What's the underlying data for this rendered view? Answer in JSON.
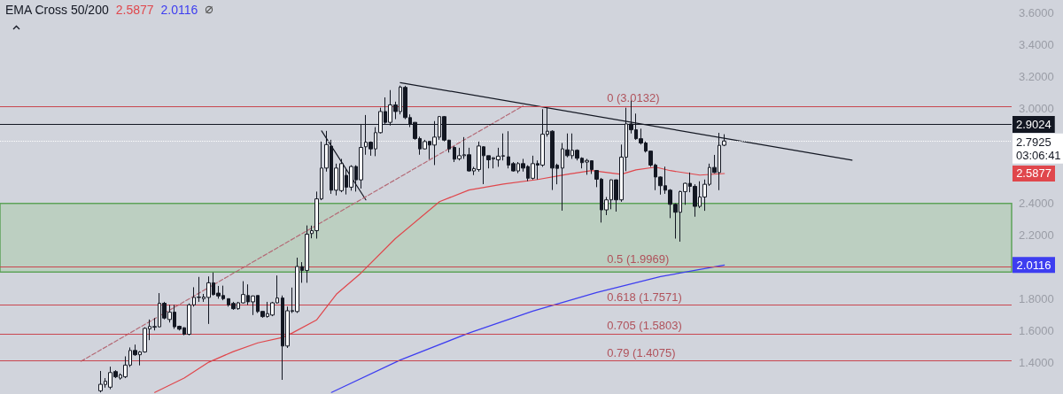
{
  "chart_data": {
    "type": "candlestick",
    "title": "EMA Cross 50/200",
    "tick_labels": "y",
    "grid": false,
    "categories": [
      null,
      null,
      null,
      null,
      null,
      null,
      null,
      null,
      null,
      null,
      null,
      null,
      null,
      null,
      null,
      null,
      null,
      null,
      null,
      null,
      null,
      null,
      null,
      null,
      null,
      null,
      null,
      null,
      null,
      null,
      null,
      null,
      null,
      null,
      null,
      null,
      null,
      null,
      null,
      null,
      null,
      null,
      null,
      null,
      null,
      null,
      null,
      null,
      null,
      null,
      null,
      null,
      null,
      null,
      null,
      null,
      null,
      null,
      null,
      null,
      null,
      null,
      null,
      null,
      null,
      null,
      null,
      null,
      null,
      null,
      null,
      null,
      null,
      null,
      null,
      null,
      null,
      null,
      null,
      null,
      null,
      null,
      null,
      null,
      null,
      null,
      null,
      null,
      null,
      null,
      null,
      null,
      null,
      null,
      null,
      null,
      null,
      null,
      null,
      null,
      null,
      null,
      null,
      null,
      null,
      null,
      null,
      null,
      null,
      null,
      null,
      null,
      null,
      null,
      null,
      null,
      null,
      null,
      null,
      null,
      null,
      null,
      null,
      null,
      null,
      null,
      null,
      null,
      null,
      null,
      null,
      null,
      null,
      null,
      null,
      null,
      null,
      null,
      null,
      null,
      null,
      null,
      null,
      null,
      null,
      null,
      null,
      null,
      null,
      null,
      null,
      null,
      null,
      null,
      null,
      null,
      null,
      null,
      null,
      null,
      null,
      null,
      null,
      null,
      null,
      null,
      null,
      null,
      null,
      null,
      null,
      null,
      null,
      null,
      null,
      null,
      null,
      null,
      null,
      null,
      null,
      null,
      null,
      null,
      null,
      null,
      null,
      null,
      null,
      null,
      null,
      null,
      null,
      null,
      null,
      null,
      null,
      null,
      null,
      null,
      null,
      null,
      null,
      null,
      null,
      null
    ],
    "ylim": [
      1.2,
      3.68
    ],
    "yticks": [
      {
        "value": 1.4,
        "label": "1.4000"
      },
      {
        "value": 1.6,
        "label": "1.6000"
      },
      {
        "value": 1.8,
        "label": "1.8000"
      },
      {
        "value": 2.2,
        "label": "2.2000"
      },
      {
        "value": 2.4,
        "label": "2.4000"
      },
      {
        "value": 3.0,
        "label": "3.0000"
      },
      {
        "value": 3.2,
        "label": "3.2000"
      },
      {
        "value": 3.4,
        "label": "3.4000"
      },
      {
        "value": 3.6,
        "label": "3.6000"
      }
    ],
    "series": [
      {
        "color": "#131722",
        "ohlc": [
          null,
          null,
          null,
          null,
          null,
          null,
          null,
          null,
          null,
          null,
          null,
          null,
          null,
          null,
          null,
          null,
          null,
          null,
          null,
          null,
          [
            1.22,
            1.345,
            1.21,
            1.261
          ],
          [
            1.26,
            1.3,
            1.24,
            1.28
          ],
          [
            1.243,
            1.372,
            1.23,
            1.335
          ],
          [
            1.341,
            1.35,
            1.3,
            1.308
          ],
          [
            1.3,
            1.33,
            1.29,
            1.32
          ],
          [
            1.308,
            1.437,
            1.3,
            1.382
          ],
          [
            1.382,
            1.493,
            1.37,
            1.474
          ],
          [
            1.474,
            1.511,
            1.44,
            1.447
          ],
          [
            1.447,
            1.47,
            1.38,
            1.465
          ],
          [
            1.465,
            1.62,
            1.46,
            1.613
          ],
          [
            1.61,
            1.669,
            1.539,
            1.625
          ],
          [
            1.62,
            1.678,
            1.6,
            1.625
          ],
          [
            1.623,
            1.835,
            1.62,
            1.771
          ],
          [
            1.771,
            1.78,
            1.67,
            1.678
          ],
          [
            1.669,
            1.761,
            1.65,
            1.715
          ],
          [
            1.715,
            1.761,
            1.61,
            1.623
          ],
          [
            1.626,
            1.63,
            1.6,
            1.608
          ],
          [
            1.617,
            1.62,
            1.57,
            1.576
          ],
          [
            1.576,
            1.77,
            1.57,
            1.761
          ],
          [
            1.761,
            1.872,
            1.75,
            1.808
          ],
          [
            1.81,
            1.937,
            1.78,
            1.808
          ],
          [
            1.8,
            1.83,
            1.78,
            1.81
          ],
          [
            1.808,
            1.94,
            1.641,
            1.9
          ],
          [
            1.9,
            1.965,
            1.82,
            1.826
          ],
          [
            1.835,
            1.88,
            1.8,
            1.817
          ],
          [
            1.82,
            1.882,
            1.79,
            1.8
          ],
          [
            1.8,
            1.8,
            1.75,
            1.761
          ],
          [
            1.77,
            1.78,
            1.73,
            1.737
          ],
          [
            1.737,
            1.78,
            1.73,
            1.774
          ],
          [
            1.774,
            1.91,
            1.77,
            1.826
          ],
          [
            1.82,
            1.89,
            1.76,
            1.78
          ],
          [
            1.78,
            1.82,
            1.697,
            1.817
          ],
          [
            1.82,
            1.82,
            1.71,
            1.719
          ],
          [
            1.72,
            1.72,
            1.68,
            1.687
          ],
          [
            1.688,
            1.78,
            1.68,
            1.706
          ],
          [
            1.697,
            1.78,
            1.69,
            1.774
          ],
          [
            1.774,
            1.946,
            1.77,
            1.804
          ],
          [
            1.804,
            1.82,
            1.289,
            1.502
          ],
          [
            1.502,
            1.75,
            1.49,
            1.724
          ],
          [
            1.72,
            1.87,
            1.71,
            1.725
          ],
          [
            1.719,
            2.058,
            1.71,
            2.002
          ],
          [
            2.002,
            2.03,
            1.9,
            1.978
          ],
          [
            1.978,
            2.261,
            1.9,
            2.206
          ],
          [
            2.21,
            2.26,
            2.18,
            2.228
          ],
          [
            2.228,
            2.474,
            2.178,
            2.428
          ],
          [
            2.428,
            2.789,
            2.42,
            2.622
          ],
          [
            2.622,
            2.856,
            2.6,
            2.77
          ],
          [
            2.76,
            2.8,
            2.46,
            2.483
          ],
          [
            2.483,
            2.65,
            2.45,
            2.622
          ],
          [
            2.48,
            2.68,
            2.47,
            2.65
          ],
          [
            2.576,
            2.62,
            2.456,
            2.502
          ],
          [
            2.502,
            2.64,
            2.48,
            2.632
          ],
          [
            2.632,
            2.64,
            2.474,
            2.548
          ],
          [
            2.548,
            2.9,
            2.493,
            2.752
          ],
          [
            2.756,
            2.956,
            2.706,
            2.785
          ],
          [
            2.785,
            2.79,
            2.7,
            2.743
          ],
          [
            2.743,
            2.88,
            2.697,
            2.845
          ],
          [
            2.845,
            3.002,
            2.84,
            2.978
          ],
          [
            2.978,
            3.067,
            2.9,
            2.91
          ],
          [
            2.91,
            3.113,
            2.89,
            3.02
          ],
          [
            3.02,
            3.04,
            2.93,
            2.978
          ],
          [
            2.978,
            3.141,
            2.96,
            3.132
          ],
          [
            3.13,
            3.14,
            2.93,
            2.94
          ],
          [
            2.94,
            2.96,
            2.88,
            2.9
          ],
          [
            2.91,
            2.91,
            2.8,
            2.808
          ],
          [
            2.808,
            2.82,
            2.706,
            2.743
          ],
          [
            2.743,
            2.8,
            2.74,
            2.789
          ],
          [
            2.79,
            2.79,
            2.678,
            2.767
          ],
          [
            2.767,
            2.918,
            2.641,
            2.817
          ],
          [
            2.817,
            2.95,
            2.8,
            2.946
          ],
          [
            2.946,
            2.95,
            2.79,
            2.798
          ],
          [
            2.798,
            2.8,
            2.72,
            2.743
          ],
          [
            2.752,
            2.76,
            2.66,
            2.678
          ],
          [
            2.681,
            2.75,
            2.67,
            2.7
          ],
          [
            2.7,
            2.817,
            2.68,
            2.706
          ],
          [
            2.706,
            2.75,
            2.6,
            2.604
          ],
          [
            2.604,
            2.63,
            2.578,
            2.619
          ],
          [
            2.613,
            2.789,
            2.6,
            2.761
          ],
          [
            2.756,
            2.76,
            2.521,
            2.7
          ],
          [
            2.7,
            2.7,
            2.62,
            2.674
          ],
          [
            2.68,
            2.69,
            2.62,
            2.687
          ],
          [
            2.674,
            2.75,
            2.63,
            2.697
          ],
          [
            2.697,
            2.84,
            2.67,
            2.7
          ],
          [
            2.693,
            2.854,
            2.62,
            2.641
          ],
          [
            2.65,
            2.66,
            2.6,
            2.604
          ],
          [
            2.604,
            2.66,
            2.59,
            2.65
          ],
          [
            2.65,
            2.68,
            2.6,
            2.622
          ],
          [
            2.632,
            2.64,
            2.54,
            2.558
          ],
          [
            2.558,
            2.7,
            2.55,
            2.65
          ],
          [
            2.65,
            2.67,
            2.55,
            2.641
          ],
          [
            2.641,
            2.993,
            2.63,
            2.835
          ],
          [
            2.835,
            3.002,
            2.82,
            2.854
          ],
          [
            2.854,
            2.86,
            2.484,
            2.622
          ],
          [
            2.64,
            2.65,
            2.52,
            2.62
          ],
          [
            2.622,
            2.78,
            2.354,
            2.743
          ],
          [
            2.737,
            2.84,
            2.69,
            2.7
          ],
          [
            2.7,
            2.84,
            2.68,
            2.734
          ],
          [
            2.734,
            2.74,
            2.67,
            2.684
          ],
          [
            2.684,
            2.69,
            2.62,
            2.656
          ],
          [
            2.66,
            2.68,
            2.58,
            2.67
          ],
          [
            2.668,
            2.67,
            2.585,
            2.613
          ],
          [
            2.607,
            2.61,
            2.502,
            2.552
          ],
          [
            2.552,
            2.56,
            2.279,
            2.359
          ],
          [
            2.359,
            2.44,
            2.326,
            2.422
          ],
          [
            2.422,
            2.55,
            2.363,
            2.548
          ],
          [
            2.548,
            2.55,
            2.348,
            2.422
          ],
          [
            2.422,
            2.77,
            2.41,
            2.691
          ],
          [
            2.691,
            3.002,
            2.603,
            2.9
          ],
          [
            2.9,
            3.048,
            2.84,
            2.863
          ],
          [
            2.863,
            2.965,
            2.8,
            2.807
          ],
          [
            2.807,
            2.87,
            2.77,
            2.78
          ],
          [
            2.78,
            2.79,
            2.72,
            2.729
          ],
          [
            2.729,
            2.73,
            2.63,
            2.641
          ],
          [
            2.641,
            2.65,
            2.483,
            2.566
          ],
          [
            2.566,
            2.57,
            2.455,
            2.511
          ],
          [
            2.511,
            2.631,
            2.46,
            2.483
          ],
          [
            2.483,
            2.49,
            2.307,
            2.394
          ],
          [
            2.394,
            2.4,
            2.178,
            2.344
          ],
          [
            2.344,
            2.48,
            2.159,
            2.474
          ],
          [
            2.474,
            2.53,
            2.391,
            2.526
          ],
          [
            2.526,
            2.594,
            2.47,
            2.507
          ],
          [
            2.507,
            2.52,
            2.316,
            2.381
          ],
          [
            2.381,
            2.539,
            2.37,
            2.44
          ],
          [
            2.44,
            2.55,
            2.353,
            2.52
          ],
          [
            2.52,
            2.65,
            2.51,
            2.626
          ],
          [
            2.626,
            2.705,
            2.59,
            2.594
          ],
          [
            2.594,
            2.844,
            2.483,
            2.765
          ],
          [
            2.766,
            2.835,
            2.76,
            2.7925
          ],
          null,
          null,
          null,
          null,
          null,
          null,
          null,
          null,
          null,
          null,
          null,
          null,
          null,
          null,
          null,
          null,
          null,
          null,
          null,
          null,
          null,
          null,
          null,
          null,
          null,
          null,
          null,
          null,
          null,
          null,
          null,
          null,
          null,
          null,
          null,
          null,
          null,
          null,
          null,
          null,
          null,
          null,
          null,
          null,
          null,
          null,
          null,
          null,
          null,
          null,
          null,
          null,
          null,
          null,
          null,
          null,
          null,
          null
        ]
      },
      {
        "type": "line",
        "name": "2.5877",
        "color": "#e0474c",
        "values": [
          null,
          null,
          null,
          null,
          null,
          null,
          null,
          null,
          null,
          null,
          null,
          null,
          null,
          null,
          null,
          null,
          null,
          null,
          null,
          null,
          null,
          null,
          null,
          null,
          null,
          null,
          null,
          null,
          null,
          null,
          null,
          1.21,
          null,
          null,
          null,
          null,
          null,
          1.3,
          null,
          null,
          null,
          null,
          1.4,
          null,
          null,
          null,
          null,
          1.467,
          null,
          null,
          null,
          null,
          1.522,
          null,
          null,
          null,
          null,
          1.556,
          null,
          1.584,
          null,
          null,
          null,
          null,
          1.667,
          null,
          null,
          null,
          1.828,
          null,
          null,
          null,
          null,
          1.961,
          null,
          null,
          null,
          null,
          null,
          null,
          2.178,
          null,
          null,
          null,
          null,
          null,
          null,
          null,
          null,
          2.411,
          null,
          null,
          null,
          null,
          null,
          2.484,
          null,
          null,
          null,
          null,
          null,
          null,
          2.522,
          null,
          null,
          null,
          null,
          null,
          null,
          2.55,
          null,
          null,
          null,
          null,
          null,
          2.583,
          null,
          null,
          null,
          null,
          2.606,
          null,
          null,
          null,
          null,
          null,
          2.583,
          null,
          null,
          2.611,
          null,
          null,
          null,
          2.628,
          null,
          null,
          2.606,
          null,
          null,
          null,
          null,
          null,
          2.578,
          null,
          null,
          null,
          null,
          2.5877,
          null,
          null,
          null,
          null,
          null,
          null,
          null,
          null,
          null,
          null,
          null,
          null,
          null,
          null,
          null,
          null,
          null,
          null,
          null,
          null,
          null,
          null,
          null,
          null,
          null,
          null,
          null,
          null,
          null,
          null,
          null,
          null,
          null,
          null,
          null,
          null,
          null,
          null,
          null,
          null,
          null,
          null,
          null,
          null,
          null,
          null,
          null,
          null,
          null,
          null,
          null,
          null,
          null,
          null,
          null,
          null,
          null,
          null
        ]
      },
      {
        "type": "line",
        "name": "2.0116",
        "color": "#3d3df0",
        "values": [
          null,
          null,
          null,
          null,
          null,
          null,
          null,
          null,
          null,
          null,
          null,
          null,
          null,
          null,
          null,
          null,
          null,
          null,
          null,
          null,
          null,
          null,
          null,
          null,
          null,
          null,
          null,
          null,
          null,
          null,
          null,
          null,
          null,
          null,
          null,
          null,
          null,
          null,
          null,
          null,
          null,
          null,
          null,
          null,
          null,
          null,
          null,
          null,
          null,
          null,
          null,
          null,
          null,
          null,
          null,
          null,
          null,
          null,
          null,
          null,
          null,
          null,
          null,
          null,
          null,
          null,
          null,
          1.21,
          null,
          null,
          null,
          null,
          null,
          null,
          null,
          null,
          null,
          null,
          null,
          null,
          null,
          1.414,
          null,
          null,
          null,
          null,
          null,
          null,
          null,
          null,
          null,
          null,
          null,
          null,
          null,
          1.584,
          null,
          null,
          null,
          null,
          null,
          null,
          null,
          null,
          null,
          null,
          null,
          null,
          1.722,
          null,
          null,
          null,
          null,
          null,
          null,
          null,
          null,
          null,
          null,
          null,
          null,
          1.839,
          null,
          null,
          null,
          null,
          null,
          null,
          null,
          null,
          null,
          null,
          null,
          null,
          1.939,
          null,
          null,
          null,
          null,
          null,
          null,
          null,
          null,
          null,
          null,
          null,
          null,
          2.0116,
          null,
          null,
          null,
          null,
          null,
          null,
          null,
          null,
          null,
          null,
          null,
          null,
          null,
          null,
          null,
          null,
          null,
          null,
          null,
          null,
          null,
          null,
          null,
          null,
          null,
          null,
          null,
          null,
          null,
          null,
          null,
          null,
          null,
          null,
          null,
          null,
          null,
          null,
          null,
          null,
          null,
          null,
          null,
          null,
          null,
          null,
          null,
          null,
          null,
          null,
          null,
          null,
          null,
          null,
          null,
          null,
          null,
          null
        ]
      },
      {
        "type": "line",
        "color": "#131722",
        "values": [
          null,
          null,
          null,
          null,
          null,
          null,
          null,
          null,
          null,
          null,
          null,
          null,
          null,
          null,
          null,
          null,
          null,
          null,
          null,
          null,
          null,
          null,
          null,
          null,
          null,
          null,
          null,
          null,
          null,
          null,
          null,
          null,
          null,
          null,
          null,
          null,
          null,
          null,
          null,
          null,
          null,
          null,
          null,
          null,
          null,
          null,
          null,
          null,
          null,
          null,
          null,
          null,
          null,
          null,
          null,
          null,
          null,
          null,
          null,
          null,
          null,
          null,
          null,
          null,
          null,
          null,
          null,
          null,
          null,
          null,
          null,
          null,
          null,
          null,
          null,
          null,
          null,
          null,
          null,
          null,
          null,
          3.16,
          null,
          null,
          null,
          null,
          null,
          null,
          null,
          null,
          null,
          null,
          null,
          null,
          null,
          null,
          null,
          null,
          null,
          null,
          null,
          null,
          null,
          null,
          null,
          null,
          null,
          null,
          null,
          null,
          null,
          null,
          null,
          null,
          null,
          null,
          null,
          null,
          null,
          null,
          null,
          null,
          null,
          null,
          null,
          null,
          null,
          null,
          null,
          null,
          null,
          null,
          null,
          null,
          null,
          null,
          null,
          null,
          null,
          null,
          null,
          null,
          null,
          null,
          null,
          null,
          null,
          null,
          null,
          null,
          null,
          null,
          null,
          null,
          null,
          null,
          null,
          null,
          null,
          null,
          null,
          null,
          null,
          null,
          null,
          null,
          null,
          null,
          null,
          null,
          null,
          null,
          null,
          2.672,
          null,
          null,
          null,
          null,
          null,
          null,
          null,
          null,
          null,
          null,
          null,
          null,
          null,
          null,
          null,
          null,
          null,
          null,
          null,
          null,
          null,
          null,
          null,
          null,
          null,
          null,
          null,
          null,
          null,
          null,
          null,
          null
        ]
      },
      {
        "type": "line",
        "color": "#131722",
        "values": [
          null,
          null,
          null,
          null,
          null,
          null,
          null,
          null,
          null,
          null,
          null,
          null,
          null,
          null,
          null,
          null,
          null,
          null,
          null,
          null,
          null,
          null,
          null,
          null,
          null,
          null,
          null,
          null,
          null,
          null,
          null,
          null,
          null,
          null,
          null,
          null,
          null,
          null,
          null,
          null,
          null,
          null,
          null,
          null,
          null,
          null,
          null,
          null,
          null,
          null,
          null,
          null,
          null,
          null,
          null,
          null,
          null,
          null,
          null,
          null,
          null,
          null,
          null,
          null,
          null,
          2.856,
          null,
          null,
          null,
          null,
          null,
          null,
          null,
          null,
          2.422,
          null,
          null,
          null,
          null,
          null,
          null,
          null,
          null,
          null,
          null,
          null,
          null,
          null,
          null,
          null,
          null,
          null,
          null,
          null,
          null,
          null,
          null,
          null,
          null,
          null,
          null,
          null,
          null,
          null,
          null,
          null,
          null,
          null,
          null,
          null,
          null,
          null,
          null,
          null,
          null,
          null,
          null,
          null,
          null,
          null,
          null,
          null,
          null,
          null,
          null,
          null,
          null,
          null,
          null,
          null,
          null,
          null,
          null,
          null,
          null,
          null,
          null,
          null,
          null,
          null,
          null,
          null,
          null,
          null,
          null,
          null,
          null,
          null,
          null,
          null,
          null,
          null,
          null,
          null,
          null,
          null,
          null,
          null,
          null,
          null,
          null,
          null,
          null,
          null,
          null,
          null,
          null,
          null,
          null,
          null,
          null,
          null,
          null,
          null,
          null,
          null,
          null,
          null,
          null,
          null,
          null,
          null,
          null,
          null,
          null,
          null,
          null,
          null,
          null,
          null,
          null,
          null,
          null,
          null,
          null,
          null,
          null,
          null,
          null,
          null,
          null,
          null,
          null,
          null,
          null,
          null
        ]
      },
      {
        "type": "line",
        "color": "#b46a76",
        "line_style": "dashed",
        "values": [
          null,
          null,
          null,
          null,
          null,
          null,
          null,
          null,
          null,
          null,
          null,
          null,
          null,
          null,
          null,
          null,
          1.406,
          null,
          null,
          null,
          null,
          null,
          null,
          null,
          null,
          null,
          null,
          null,
          null,
          null,
          null,
          null,
          null,
          null,
          null,
          null,
          null,
          null,
          null,
          null,
          null,
          null,
          null,
          null,
          null,
          null,
          null,
          null,
          null,
          null,
          null,
          null,
          null,
          null,
          null,
          null,
          null,
          null,
          null,
          null,
          null,
          null,
          null,
          null,
          null,
          null,
          null,
          null,
          null,
          null,
          null,
          null,
          null,
          null,
          null,
          null,
          null,
          null,
          null,
          null,
          null,
          null,
          null,
          null,
          null,
          null,
          null,
          null,
          null,
          null,
          null,
          null,
          null,
          null,
          null,
          null,
          null,
          null,
          null,
          null,
          null,
          null,
          null,
          null,
          null,
          null,
          3.0132,
          null,
          null,
          null,
          null,
          null,
          null,
          null,
          null,
          null,
          null,
          null,
          null,
          null,
          null,
          null,
          null,
          null,
          null,
          null,
          null,
          null,
          null,
          null,
          null,
          null,
          null,
          null,
          null,
          null,
          null,
          null,
          null,
          null,
          null,
          null,
          null,
          null,
          null,
          null,
          null,
          null,
          null,
          null,
          null,
          null,
          null,
          null,
          null,
          null,
          null,
          null,
          null,
          null,
          null,
          null,
          null,
          null,
          null,
          null,
          null,
          null,
          null,
          null,
          null,
          null,
          null,
          null,
          null,
          null,
          null,
          null,
          null,
          null,
          null,
          null,
          null,
          null,
          null,
          null,
          null,
          null,
          null,
          null,
          null,
          null,
          null,
          null,
          null,
          null,
          null,
          null,
          null,
          null,
          null,
          null,
          null,
          null,
          null,
          null
        ]
      }
    ],
    "ref_lines": [
      {
        "axis": "y",
        "value": 3.0132,
        "color": "#c9464f"
      },
      {
        "axis": "y",
        "value": 1.9969,
        "color": "#c9464f"
      },
      {
        "axis": "y",
        "value": 1.7571,
        "color": "#c9464f"
      },
      {
        "axis": "y",
        "value": 1.5803,
        "color": "#c9464f"
      },
      {
        "axis": "y",
        "value": 1.4075,
        "color": "#c9464f"
      },
      {
        "axis": "y",
        "value": 2.9024,
        "label": "2.9024",
        "color": "#131722"
      },
      {
        "axis": "y",
        "value": 2.7925,
        "label": "2.7925\n03:06:41",
        "color": "#ffffff",
        "line_style": "dotted"
      }
    ],
    "bands": [
      {
        "axis": "y",
        "from": 1.967,
        "to": 2.4,
        "color": "#bccfc1"
      }
    ],
    "annotations": [
      {
        "text": "0 (3.0132)",
        "y": 3.0132
      },
      {
        "text": "0.5 (1.9969)",
        "y": 1.9969
      },
      {
        "text": "0.618 (1.7571)",
        "y": 1.7571
      },
      {
        "text": "0.705 (1.5803)",
        "y": 1.5803
      },
      {
        "text": "0.79 (1.4075)",
        "y": 1.4075
      }
    ]
  }
}
